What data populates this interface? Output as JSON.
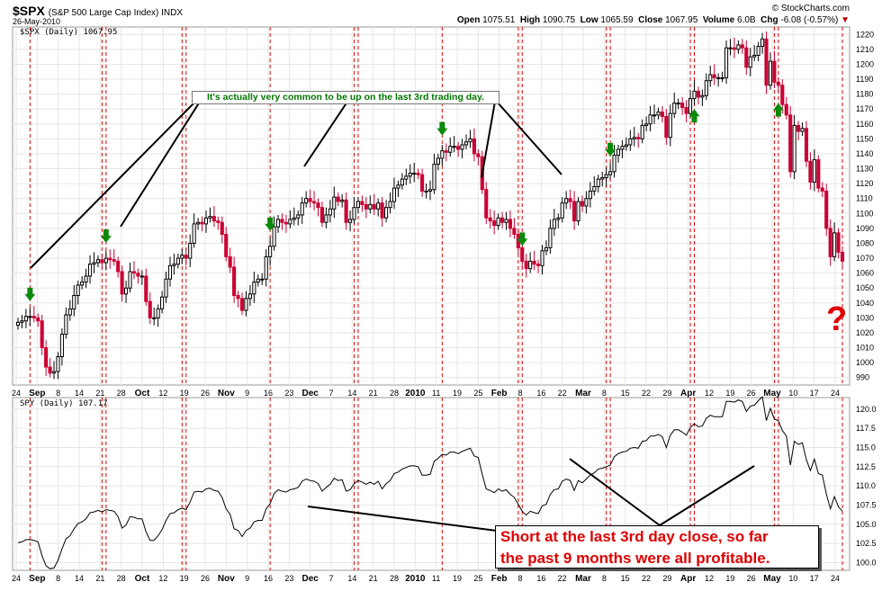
{
  "header": {
    "symbol": "$SPX",
    "symbol_name": "(S&P 500 Large Cap Index) INDX",
    "date": "26-May-2010",
    "source": "© StockCharts.com",
    "open_label": "Open",
    "open_value": "1075.51",
    "high_label": "High",
    "high_value": "1090.75",
    "low_label": "Low",
    "low_value": "1065.59",
    "close_label": "Close",
    "close_value": "1067.95",
    "volume_label": "Volume",
    "volume_value": "6.0B",
    "chg_label": "Chg",
    "chg_value": "-6.08 (-0.57%)",
    "chg_arrow": "▼"
  },
  "annotations": {
    "green_callout": "It's actually very common to be up on the last 3rd trading day.",
    "red_line1": "Short at the last 3rd day close, so far",
    "red_line2": "the past 9 months were all profitable.",
    "question_mark": "?"
  },
  "colors": {
    "up": "#000000",
    "down": "#cc0033",
    "signal_line": "#e00000",
    "arrow": "#0a8a0a",
    "grid": "#e6e6e6"
  },
  "chart_data": [
    {
      "type": "candlestick",
      "title": "$SPX (Daily) 1067.95",
      "ylim": [
        985,
        1225
      ],
      "y_ticks": [
        990,
        1000,
        1010,
        1020,
        1030,
        1040,
        1050,
        1060,
        1070,
        1080,
        1090,
        1100,
        1110,
        1120,
        1130,
        1140,
        1150,
        1160,
        1170,
        1180,
        1190,
        1200,
        1210,
        1220
      ],
      "x_tick_labels": [
        "24",
        "Sep",
        "8",
        "14",
        "21",
        "28",
        "Oct",
        "12",
        "19",
        "26",
        "Nov",
        "9",
        "16",
        "23",
        "Dec",
        "7",
        "14",
        "21",
        "28",
        "2010",
        "11",
        "19",
        "25",
        "Feb",
        "8",
        "16",
        "22",
        "Mar",
        "8",
        "15",
        "22",
        "29",
        "Apr",
        "12",
        "19",
        "26",
        "May",
        "10",
        "17",
        "24"
      ],
      "x_tick_major": [
        "Sep",
        "Oct",
        "Nov",
        "Dec",
        "2010",
        "Feb",
        "Mar",
        "Apr",
        "May"
      ],
      "closes": [
        1027,
        1028,
        1031,
        1031,
        1030,
        1028,
        1010,
        997,
        993,
        994,
        1004,
        1019,
        1032,
        1036,
        1045,
        1052,
        1054,
        1058,
        1066,
        1067,
        1069,
        1067,
        1070,
        1069,
        1068,
        1061,
        1046,
        1050,
        1061,
        1060,
        1058,
        1058,
        1041,
        1030,
        1030,
        1036,
        1044,
        1056,
        1065,
        1066,
        1070,
        1072,
        1070,
        1080,
        1093,
        1094,
        1093,
        1097,
        1098,
        1095,
        1094,
        1086,
        1071,
        1064,
        1045,
        1043,
        1035,
        1043,
        1046,
        1054,
        1056,
        1056,
        1071,
        1078,
        1091,
        1096,
        1094,
        1093,
        1096,
        1097,
        1099,
        1107,
        1110,
        1108,
        1107,
        1104,
        1094,
        1099,
        1103,
        1111,
        1108,
        1109,
        1094,
        1096,
        1104,
        1108,
        1106,
        1103,
        1106,
        1103,
        1107,
        1097,
        1104,
        1108,
        1117,
        1119,
        1123,
        1125,
        1127,
        1127,
        1126,
        1115,
        1115,
        1116,
        1133,
        1137,
        1142,
        1141,
        1145,
        1145,
        1143,
        1146,
        1148,
        1150,
        1140,
        1138,
        1116,
        1097,
        1095,
        1092,
        1097,
        1094,
        1096,
        1090,
        1086,
        1077,
        1068,
        1063,
        1068,
        1066,
        1065,
        1075,
        1077,
        1090,
        1096,
        1097,
        1107,
        1110,
        1108,
        1095,
        1108,
        1105,
        1110,
        1115,
        1118,
        1123,
        1124,
        1126,
        1128,
        1139,
        1143,
        1145,
        1146,
        1150,
        1151,
        1150,
        1159,
        1160,
        1166,
        1166,
        1168,
        1165,
        1151,
        1167,
        1174,
        1174,
        1171,
        1167,
        1177,
        1182,
        1178,
        1179,
        1189,
        1193,
        1191,
        1191,
        1191,
        1211,
        1211,
        1210,
        1213,
        1211,
        1198,
        1205,
        1206,
        1212,
        1217,
        1186,
        1202,
        1188,
        1186,
        1173,
        1166,
        1128,
        1159,
        1155,
        1157,
        1135,
        1121,
        1136,
        1117,
        1115,
        1090,
        1071,
        1087,
        1074,
        1068
      ],
      "signal_bar_index": [
        3,
        21,
        22,
        41,
        42,
        63,
        84,
        85,
        106,
        125,
        126,
        147,
        148,
        168,
        169,
        189,
        190,
        208
      ]
    },
    {
      "type": "line",
      "title": "SPY (Daily) 107.17",
      "ylim": [
        99,
        121.5
      ],
      "y_ticks": [
        "100.0",
        "102.5",
        "105.0",
        "107.5",
        "110.0",
        "112.5",
        "115.0",
        "117.5",
        "120.0"
      ],
      "series": [
        {
          "name": "SPY",
          "last": 107.17
        }
      ]
    }
  ]
}
